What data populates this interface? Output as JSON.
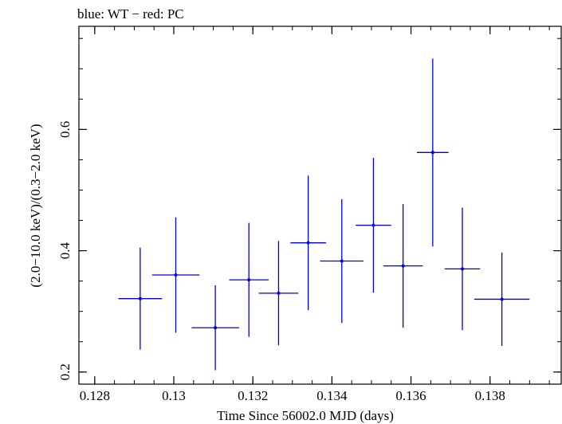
{
  "chart_data": {
    "type": "scatter",
    "title": "blue: WT − red: PC",
    "xlabel": "Time Since 56002.0 MJD (days)",
    "ylabel": "(2.0−10.0 keV)/(0.3−2.0 keV)",
    "xlim": [
      0.1276,
      0.1398
    ],
    "ylim": [
      0.18,
      0.77
    ],
    "x_ticks": [
      0.128,
      0.13,
      0.132,
      0.134,
      0.136,
      0.138
    ],
    "x_tick_labels": [
      "0.128",
      "0.13",
      "0.132",
      "0.134",
      "0.136",
      "0.138"
    ],
    "y_ticks": [
      0.2,
      0.4,
      0.6
    ],
    "y_tick_labels": [
      "0.2",
      "0.4",
      "0.6"
    ],
    "grid": false,
    "series": [
      {
        "name": "WT",
        "color": "#0000dd",
        "points": [
          {
            "x": 0.12915,
            "xerr": 0.00055,
            "y": 0.321,
            "yerr": 0.084
          },
          {
            "x": 0.13005,
            "xerr": 0.0006,
            "y": 0.36,
            "yerr": 0.095
          },
          {
            "x": 0.13105,
            "xerr": 0.0006,
            "y": 0.273,
            "yerr": 0.07
          },
          {
            "x": 0.1319,
            "xerr": 0.0005,
            "y": 0.352,
            "yerr": 0.094
          },
          {
            "x": 0.13265,
            "xerr": 0.0005,
            "y": 0.33,
            "yerr": 0.086
          },
          {
            "x": 0.1334,
            "xerr": 0.00045,
            "y": 0.413,
            "yerr": 0.111
          },
          {
            "x": 0.13425,
            "xerr": 0.00055,
            "y": 0.383,
            "yerr": 0.102
          },
          {
            "x": 0.13505,
            "xerr": 0.00045,
            "y": 0.442,
            "yerr": 0.111
          },
          {
            "x": 0.1358,
            "xerr": 0.0005,
            "y": 0.375,
            "yerr": 0.102
          },
          {
            "x": 0.13655,
            "xerr": 0.0004,
            "y": 0.562,
            "yerr": 0.155
          },
          {
            "x": 0.1373,
            "xerr": 0.00045,
            "y": 0.37,
            "yerr": 0.101
          },
          {
            "x": 0.1383,
            "xerr": 0.0007,
            "y": 0.32,
            "yerr": 0.077
          }
        ]
      }
    ]
  }
}
